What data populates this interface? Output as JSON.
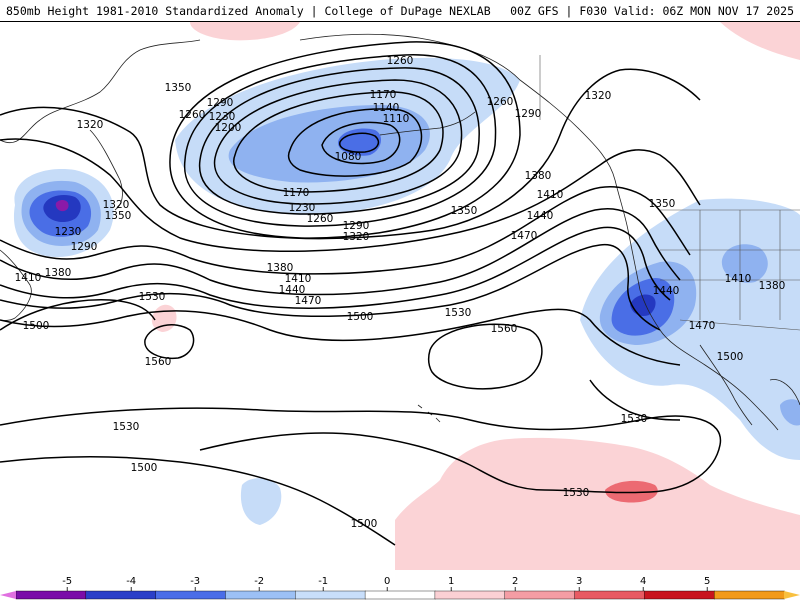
{
  "header": {
    "title_left": "850mb Height 1981-2010 Standardized Anomaly | College of DuPage NEXLAB",
    "title_right": "00Z GFS | F030 Valid: 06Z MON NOV 17 2025"
  },
  "contour_labels": [
    {
      "id": "l1260a",
      "text": "1260"
    },
    {
      "id": "l1350a",
      "text": "1350"
    },
    {
      "id": "l1290a",
      "text": "1290"
    },
    {
      "id": "l1260b",
      "text": "1260"
    },
    {
      "id": "l1230a",
      "text": "1230"
    },
    {
      "id": "l1200",
      "text": "1200"
    },
    {
      "id": "l1170a",
      "text": "1170"
    },
    {
      "id": "l1140",
      "text": "1140"
    },
    {
      "id": "l1110",
      "text": "1110"
    },
    {
      "id": "l1080",
      "text": "1080"
    },
    {
      "id": "l1260c",
      "text": "1260"
    },
    {
      "id": "l1290b",
      "text": "1290"
    },
    {
      "id": "l1320a",
      "text": "1320"
    },
    {
      "id": "l1320b",
      "text": "1320"
    },
    {
      "id": "l1170b",
      "text": "1170"
    },
    {
      "id": "l1230b",
      "text": "1230"
    },
    {
      "id": "l1260d",
      "text": "1260"
    },
    {
      "id": "l1290c",
      "text": "1290"
    },
    {
      "id": "l1320c",
      "text": "1320"
    },
    {
      "id": "l1350b",
      "text": "1350"
    },
    {
      "id": "l1320d",
      "text": "1320"
    },
    {
      "id": "l1350c",
      "text": "1350"
    },
    {
      "id": "l1230c",
      "text": "1230"
    },
    {
      "id": "l1290d",
      "text": "1290"
    },
    {
      "id": "l1410a",
      "text": "1410"
    },
    {
      "id": "l1380a",
      "text": "1380"
    },
    {
      "id": "l1380b",
      "text": "1380"
    },
    {
      "id": "l1410b",
      "text": "1410"
    },
    {
      "id": "l1440a",
      "text": "1440"
    },
    {
      "id": "l1470a",
      "text": "1470"
    },
    {
      "id": "l1500a",
      "text": "1500"
    },
    {
      "id": "l1530a",
      "text": "1530"
    },
    {
      "id": "l1560a",
      "text": "1560"
    },
    {
      "id": "l1500b",
      "text": "1500"
    },
    {
      "id": "l1530b",
      "text": "1530"
    },
    {
      "id": "l1560b",
      "text": "1560"
    },
    {
      "id": "l1380c",
      "text": "1380"
    },
    {
      "id": "l1410c",
      "text": "1410"
    },
    {
      "id": "l1440b",
      "text": "1440"
    },
    {
      "id": "l1470b",
      "text": "1470"
    },
    {
      "id": "l1350d",
      "text": "1350"
    },
    {
      "id": "l1440c",
      "text": "1440"
    },
    {
      "id": "l1470c",
      "text": "1470"
    },
    {
      "id": "l1410d",
      "text": "1410"
    },
    {
      "id": "l1380d",
      "text": "1380"
    },
    {
      "id": "l1500c",
      "text": "1500"
    },
    {
      "id": "l1530c",
      "text": "1530"
    },
    {
      "id": "l1530d",
      "text": "1530"
    },
    {
      "id": "l1500d",
      "text": "1500"
    },
    {
      "id": "l1500e",
      "text": "1500"
    },
    {
      "id": "l1530e",
      "text": "1530"
    }
  ],
  "colorbar": {
    "ticks": [
      "-5",
      "-4",
      "-3",
      "-2",
      "-1",
      "0",
      "1",
      "2",
      "3",
      "4",
      "5"
    ],
    "colors": [
      "#7a0da8",
      "#2a3fc8",
      "#4a6de8",
      "#9cc0f5",
      "#c8defa",
      "#ffffff",
      "#fbd0d4",
      "#f49da4",
      "#e85a62",
      "#c8141e",
      "#f29a1a"
    ],
    "left_arrow_color": "#e070e0",
    "right_arrow_color": "#f8c040"
  },
  "colors": {
    "anom_neg_1": "#c6dcf8",
    "anom_neg_2": "#8fb2f0",
    "anom_neg_3": "#4a6ee6",
    "anom_neg_4": "#2438c0",
    "anom_neg_5": "#8a1aa8",
    "anom_pos_1": "#fbd3d6",
    "anom_pos_2": "#f6a2a8",
    "anom_pos_3": "#ec6a72"
  }
}
